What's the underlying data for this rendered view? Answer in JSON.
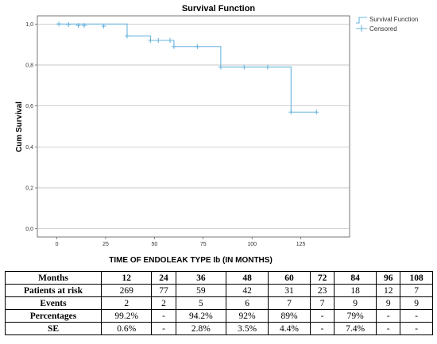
{
  "chart_data": {
    "type": "line",
    "subtype": "kaplan-meier-step",
    "title": "Survival Function",
    "xlabel": "TIME OF ENDOLEAK TYPE Ib (IN MONTHS)",
    "ylabel": "Cum Survival",
    "xlim": [
      -10,
      150
    ],
    "ylim": [
      -0.04,
      1.04
    ],
    "x_ticks": [
      0,
      25,
      50,
      75,
      100,
      125
    ],
    "x_tick_labels": [
      "0",
      "25",
      "50",
      "75",
      "100",
      "125"
    ],
    "y_ticks": [
      0.0,
      0.2,
      0.4,
      0.6,
      0.8,
      1.0
    ],
    "y_tick_labels": [
      "0,0",
      "0,2",
      "0,4",
      "0,6",
      "0,8",
      "1,0"
    ],
    "grid": "horizontal",
    "legend_position": "top-right",
    "color": "#6ab4dc",
    "series": [
      {
        "name": "Survival Function",
        "kind": "step",
        "x": [
          0,
          36,
          48,
          60,
          84,
          120,
          133
        ],
        "y": [
          1.0,
          0.942,
          0.92,
          0.89,
          0.79,
          0.57,
          0.57
        ]
      },
      {
        "name": "Censored",
        "kind": "marker",
        "x": [
          1,
          6,
          11,
          14,
          24,
          36,
          48,
          52,
          58,
          60,
          72,
          84,
          96,
          108,
          120,
          133
        ],
        "y": [
          1.0,
          0.998,
          0.993,
          0.993,
          0.99,
          0.942,
          0.92,
          0.92,
          0.92,
          0.89,
          0.89,
          0.79,
          0.79,
          0.79,
          0.57,
          0.57
        ]
      }
    ]
  },
  "table": {
    "header_label": "Months",
    "columns": [
      "12",
      "24",
      "36",
      "48",
      "60",
      "72",
      "84",
      "96",
      "108"
    ],
    "rows": [
      {
        "label": "Patients at risk",
        "values": [
          "269",
          "77",
          "59",
          "42",
          "31",
          "23",
          "18",
          "12",
          "7"
        ]
      },
      {
        "label": "Events",
        "values": [
          "2",
          "2",
          "5",
          "6",
          "7",
          "7",
          "9",
          "9",
          "9"
        ]
      },
      {
        "label": "Percentages",
        "values": [
          "99.2%",
          "-",
          "94.2%",
          "92%",
          "89%",
          "-",
          "79%",
          "-",
          "-"
        ]
      },
      {
        "label": "SE",
        "values": [
          "0.6%",
          "-",
          "2.8%",
          "3.5%",
          "4.4%",
          "-",
          "7.4%",
          "-",
          "-"
        ]
      }
    ]
  }
}
